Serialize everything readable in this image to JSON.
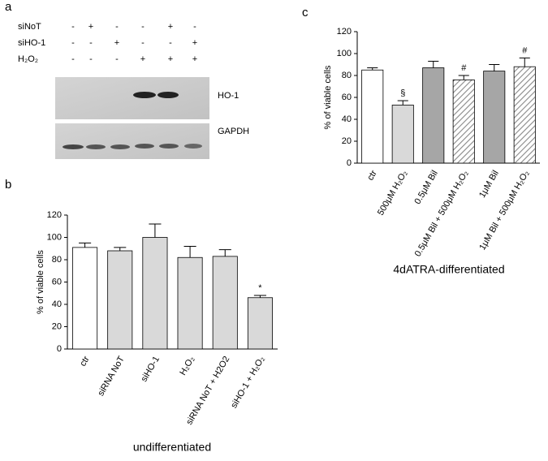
{
  "panel_labels": [
    "a",
    "b",
    "c"
  ],
  "blot": {
    "row_labels": [
      "siNoT",
      "siHO-1",
      "H₂O₂"
    ],
    "signs": [
      [
        "-",
        "+",
        "-",
        "-",
        "+",
        "-"
      ],
      [
        "-",
        "-",
        "+",
        "-",
        "-",
        "+"
      ],
      [
        "-",
        "-",
        "-",
        "+",
        "+",
        "+"
      ]
    ],
    "band_labels": [
      "HO-1",
      "GAPDH"
    ]
  },
  "chart_data": [
    {
      "type": "bar",
      "y_label": "% of viable cells",
      "caption": "undifferentiated",
      "categories": [
        "ctr",
        "siRNA NoT",
        "siHO-1",
        "H₂O₂",
        "siRNA NoT + H2O2",
        "siHO-1 + H₂O₂"
      ],
      "values": [
        91,
        88,
        100,
        82,
        83,
        46
      ],
      "errors": [
        4,
        3,
        12,
        10,
        6,
        2
      ],
      "fills": [
        "#ffffff",
        "#d9d9d9",
        "#d9d9d9",
        "#d9d9d9",
        "#d9d9d9",
        "#d9d9d9"
      ],
      "bar_labels": [
        null,
        null,
        null,
        null,
        null,
        "*"
      ],
      "ylim": [
        0,
        120
      ],
      "yticks": [
        0,
        20,
        40,
        60,
        80,
        100,
        120
      ]
    },
    {
      "type": "bar",
      "y_label": "% of viable cells",
      "caption": "4dATRA-differentiated",
      "categories": [
        "ctr",
        "500μM H₂O₂",
        "0.5μM Bil",
        "0.5μM Bil + 500μM H₂O₂",
        "1μM Bil",
        "1μM Bil + 500μM H₂O₂"
      ],
      "values": [
        85,
        53,
        87,
        76,
        84,
        88
      ],
      "errors": [
        2,
        4,
        6,
        4,
        6,
        8
      ],
      "fills": [
        "#ffffff",
        "#d9d9d9",
        "#a6a6a6",
        "hatch",
        "#a6a6a6",
        "hatch"
      ],
      "bar_labels": [
        null,
        "§",
        null,
        "#",
        null,
        "#"
      ],
      "ylim": [
        0,
        120
      ],
      "yticks": [
        0,
        20,
        40,
        60,
        80,
        100,
        120
      ]
    }
  ]
}
